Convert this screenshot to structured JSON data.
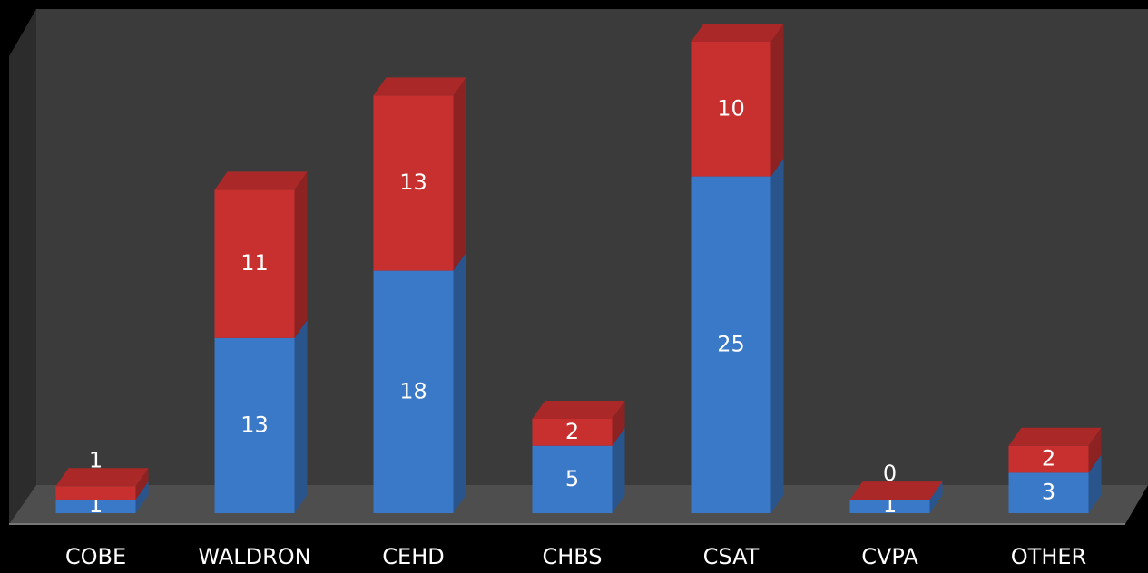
{
  "chart_data": {
    "type": "bar",
    "stacked": true,
    "categories": [
      "COBE",
      "WALDRON",
      "CEHD",
      "CHBS",
      "CSAT",
      "CVPA",
      "OTHER"
    ],
    "series": [
      {
        "color": "#3a78c8",
        "values": [
          1,
          13,
          18,
          5,
          25,
          1,
          3
        ]
      },
      {
        "color": "#c8302f",
        "values": [
          1,
          11,
          13,
          2,
          10,
          0,
          2
        ]
      }
    ]
  }
}
